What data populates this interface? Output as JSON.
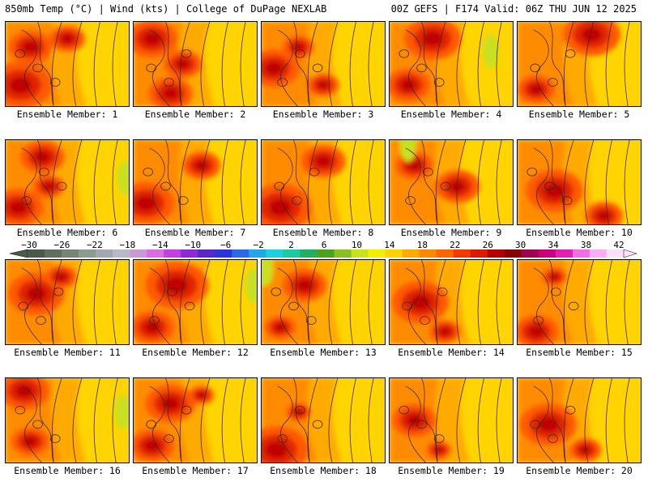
{
  "header": {
    "left": "850mb Temp (°C) | Wind (kts) | College of DuPage NEXLAB",
    "right": "00Z GEFS | F174 Valid: 06Z THU JUN 12 2025"
  },
  "panels": [
    {
      "label": "Ensemble Member: 1"
    },
    {
      "label": "Ensemble Member: 2"
    },
    {
      "label": "Ensemble Member: 3"
    },
    {
      "label": "Ensemble Member: 4"
    },
    {
      "label": "Ensemble Member: 5"
    },
    {
      "label": "Ensemble Member: 6"
    },
    {
      "label": "Ensemble Member: 7"
    },
    {
      "label": "Ensemble Member: 8"
    },
    {
      "label": "Ensemble Member: 9"
    },
    {
      "label": "Ensemble Member: 10"
    },
    {
      "label": "Ensemble Member: 11"
    },
    {
      "label": "Ensemble Member: 12"
    },
    {
      "label": "Ensemble Member: 13"
    },
    {
      "label": "Ensemble Member: 14"
    },
    {
      "label": "Ensemble Member: 15"
    },
    {
      "label": "Ensemble Member: 16"
    },
    {
      "label": "Ensemble Member: 17"
    },
    {
      "label": "Ensemble Member: 18"
    },
    {
      "label": "Ensemble Member: 19"
    },
    {
      "label": "Ensemble Member: 20"
    }
  ],
  "colorbar": {
    "tick_labels": [
      "−30",
      "−26",
      "−22",
      "−18",
      "−14",
      "−10",
      "−6",
      "−2",
      "2",
      "6",
      "10",
      "14",
      "18",
      "22",
      "26",
      "30",
      "34",
      "38",
      "42"
    ],
    "colors": [
      "#4a5a4a",
      "#60705e",
      "#768676",
      "#8c9c8c",
      "#a2a8b0",
      "#b8b8c8",
      "#c89ad8",
      "#d86ee0",
      "#c040e0",
      "#8a2ad8",
      "#5a26c8",
      "#2a36d8",
      "#2a6ae8",
      "#20a8e8",
      "#20d0d8",
      "#20c8a0",
      "#20b060",
      "#50a020",
      "#88c020",
      "#c8e020",
      "#f0f000",
      "#ffd400",
      "#ffaa00",
      "#ff8800",
      "#ff6600",
      "#f03c00",
      "#d81c00",
      "#b00000",
      "#880000",
      "#a00050",
      "#c8007a",
      "#e020b0",
      "#f070e0",
      "#f8b0f0",
      "#fce0fa"
    ]
  },
  "map_colors": {
    "base": "#ffd400",
    "c18": "#ffaa00",
    "c22": "#ff8c00",
    "c26": "#ff5a00",
    "c30": "#e02800",
    "c34": "#c00000",
    "green": "#c8e020"
  },
  "members": [
    {
      "hot": [
        [
          0.12,
          0.75,
          0.5
        ],
        [
          0.2,
          0.3,
          0.35
        ],
        [
          0.5,
          0.2,
          0.28
        ]
      ],
      "cool": []
    },
    {
      "hot": [
        [
          0.15,
          0.2,
          0.4
        ],
        [
          0.4,
          0.5,
          0.3
        ],
        [
          0.3,
          0.85,
          0.35
        ]
      ],
      "cool": []
    },
    {
      "hot": [
        [
          0.1,
          0.55,
          0.4
        ],
        [
          0.3,
          0.3,
          0.25
        ],
        [
          0.5,
          0.75,
          0.25
        ]
      ],
      "cool": []
    },
    {
      "hot": [
        [
          0.35,
          0.2,
          0.45
        ],
        [
          0.15,
          0.75,
          0.35
        ]
      ],
      "cool": [
        [
          0.82,
          0.35
        ]
      ]
    },
    {
      "hot": [
        [
          0.6,
          0.15,
          0.45
        ],
        [
          0.15,
          0.8,
          0.3
        ]
      ],
      "cool": []
    },
    {
      "hot": [
        [
          0.3,
          0.2,
          0.35
        ],
        [
          0.1,
          0.8,
          0.4
        ],
        [
          0.35,
          0.55,
          0.25
        ]
      ],
      "cool": [
        [
          0.97,
          0.45
        ]
      ]
    },
    {
      "hot": [
        [
          0.1,
          0.75,
          0.45
        ],
        [
          0.55,
          0.3,
          0.3
        ]
      ],
      "cool": []
    },
    {
      "hot": [
        [
          0.15,
          0.8,
          0.5
        ],
        [
          0.5,
          0.25,
          0.35
        ]
      ],
      "cool": []
    },
    {
      "hot": [
        [
          0.55,
          0.55,
          0.35
        ],
        [
          0.2,
          0.3,
          0.3
        ]
      ],
      "cool": [
        [
          0.15,
          0.05
        ]
      ]
    },
    {
      "hot": [
        [
          0.3,
          0.6,
          0.45
        ],
        [
          0.7,
          0.9,
          0.3
        ]
      ],
      "cool": []
    },
    {
      "hot": [
        [
          0.25,
          0.4,
          0.45
        ],
        [
          0.45,
          0.2,
          0.25
        ]
      ],
      "cool": []
    },
    {
      "hot": [
        [
          0.35,
          0.3,
          0.5
        ],
        [
          0.15,
          0.8,
          0.35
        ]
      ],
      "cool": [
        [
          0.97,
          0.3
        ]
      ]
    },
    {
      "hot": [
        [
          0.35,
          0.3,
          0.35
        ],
        [
          0.15,
          0.8,
          0.25
        ]
      ],
      "cool": [
        [
          0.03,
          0.1
        ]
      ]
    },
    {
      "hot": [
        [
          0.25,
          0.5,
          0.45
        ],
        [
          0.45,
          0.85,
          0.25
        ]
      ],
      "cool": []
    },
    {
      "hot": [
        [
          0.15,
          0.85,
          0.35
        ],
        [
          0.3,
          0.2,
          0.2
        ]
      ],
      "cool": []
    },
    {
      "hot": [
        [
          0.15,
          0.15,
          0.4
        ],
        [
          0.2,
          0.75,
          0.3
        ]
      ],
      "cool": [
        [
          0.95,
          0.4
        ]
      ]
    },
    {
      "hot": [
        [
          0.3,
          0.3,
          0.4
        ],
        [
          0.15,
          0.8,
          0.35
        ],
        [
          0.55,
          0.2,
          0.2
        ]
      ],
      "cool": []
    },
    {
      "hot": [
        [
          0.12,
          0.85,
          0.5
        ],
        [
          0.3,
          0.4,
          0.2
        ]
      ],
      "cool": []
    },
    {
      "hot": [
        [
          0.2,
          0.5,
          0.35
        ],
        [
          0.4,
          0.85,
          0.2
        ]
      ],
      "cool": []
    },
    {
      "hot": [
        [
          0.25,
          0.55,
          0.45
        ],
        [
          0.55,
          0.85,
          0.25
        ]
      ],
      "cool": []
    }
  ]
}
